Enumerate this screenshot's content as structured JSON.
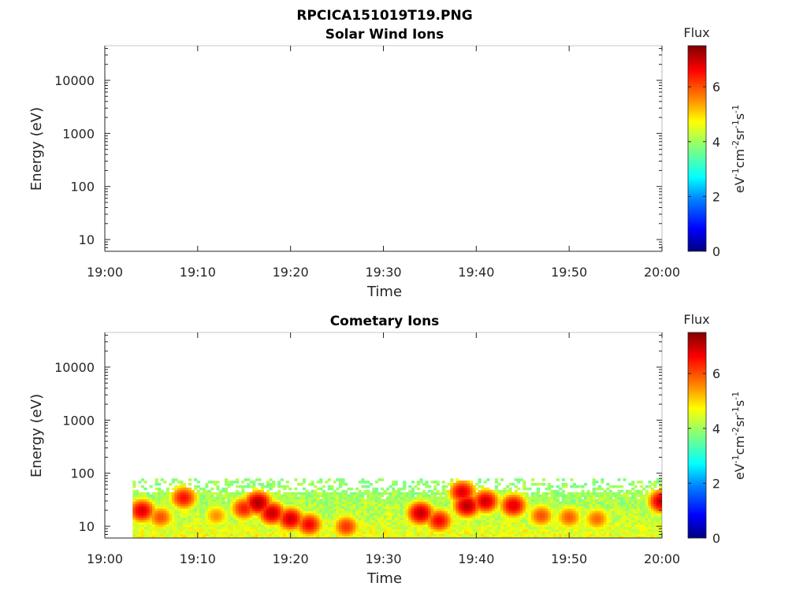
{
  "figure": {
    "title": "RPCICA151019T19.PNG"
  },
  "colors": {
    "colormap": [
      "#00007f",
      "#0000ff",
      "#007fff",
      "#00ffff",
      "#7fff7f",
      "#ffff00",
      "#ff7f00",
      "#ff0000",
      "#7f0000"
    ],
    "axis": "#262626"
  },
  "chart_data": [
    {
      "type": "heatmap",
      "title": "Solar Wind Ions",
      "xlabel": "Time",
      "ylabel": "Energy (eV)",
      "x_ticks": [
        "19:00",
        "19:10",
        "19:20",
        "19:30",
        "19:40",
        "19:50",
        "20:00"
      ],
      "xlim": [
        "19:00",
        "20:00"
      ],
      "y_scale": "log",
      "y_ticks": [
        "10",
        "100",
        "1000",
        "10000"
      ],
      "ylim": [
        6,
        45000
      ],
      "colorbar": {
        "title": "Flux",
        "label": "eV-1cm-2sr-1s-1",
        "label_parts": [
          "eV",
          "-1",
          "cm",
          "-2",
          "sr",
          "-1",
          "s",
          "-1"
        ],
        "ticks": [
          "0",
          "2",
          "4",
          "6"
        ],
        "range": [
          0,
          7.5
        ],
        "colormap": "jet"
      },
      "data": []
    },
    {
      "type": "heatmap",
      "title": "Cometary Ions",
      "xlabel": "Time",
      "ylabel": "Energy (eV)",
      "x_ticks": [
        "19:00",
        "19:10",
        "19:20",
        "19:30",
        "19:40",
        "19:50",
        "20:00"
      ],
      "xlim": [
        "19:00",
        "20:00"
      ],
      "y_scale": "log",
      "y_ticks": [
        "10",
        "100",
        "1000",
        "10000"
      ],
      "ylim": [
        6,
        45000
      ],
      "colorbar": {
        "title": "Flux",
        "label": "eV-1cm-2sr-1s-1",
        "label_parts": [
          "eV",
          "-1",
          "cm",
          "-2",
          "sr",
          "-1",
          "s",
          "-1"
        ],
        "ticks": [
          "0",
          "2",
          "4",
          "6"
        ],
        "range": [
          0,
          7.5
        ],
        "colormap": "jet"
      },
      "data_range": {
        "start": "19:03",
        "end": "20:00",
        "energy_min_eV": 6,
        "energy_max_eV": 80
      },
      "peaks": [
        {
          "time": "19:04",
          "energy_eV": 20,
          "flux": 6.8
        },
        {
          "time": "19:06",
          "energy_eV": 15,
          "flux": 6.0
        },
        {
          "time": "19:08.5",
          "energy_eV": 35,
          "flux": 6.5
        },
        {
          "time": "19:12",
          "energy_eV": 16,
          "flux": 5.5
        },
        {
          "time": "19:15",
          "energy_eV": 22,
          "flux": 6.4
        },
        {
          "time": "19:16.5",
          "energy_eV": 28,
          "flux": 7.2
        },
        {
          "time": "19:18",
          "energy_eV": 18,
          "flux": 7.0
        },
        {
          "time": "19:20",
          "energy_eV": 14,
          "flux": 6.9
        },
        {
          "time": "19:22",
          "energy_eV": 11,
          "flux": 6.6
        },
        {
          "time": "19:26",
          "energy_eV": 10,
          "flux": 6.2
        },
        {
          "time": "19:34",
          "energy_eV": 18,
          "flux": 7.0
        },
        {
          "time": "19:36",
          "energy_eV": 13,
          "flux": 6.6
        },
        {
          "time": "19:38.5",
          "energy_eV": 45,
          "flux": 6.8
        },
        {
          "time": "19:39",
          "energy_eV": 25,
          "flux": 7.1
        },
        {
          "time": "19:41",
          "energy_eV": 30,
          "flux": 6.9
        },
        {
          "time": "19:44",
          "energy_eV": 25,
          "flux": 6.8
        },
        {
          "time": "19:47",
          "energy_eV": 16,
          "flux": 6.0
        },
        {
          "time": "19:50",
          "energy_eV": 15,
          "flux": 5.9
        },
        {
          "time": "19:53",
          "energy_eV": 14,
          "flux": 5.8
        },
        {
          "time": "20:00",
          "energy_eV": 30,
          "flux": 7.0
        }
      ]
    }
  ]
}
